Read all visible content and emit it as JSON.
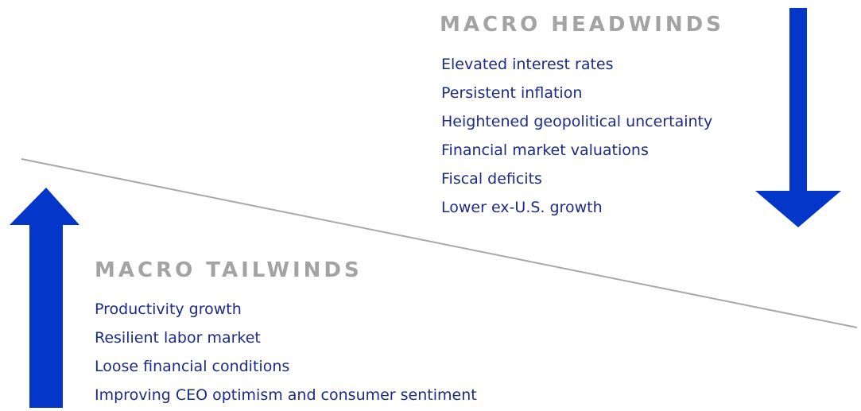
{
  "headwinds": {
    "title": "MACRO HEADWINDS",
    "items": [
      "Elevated interest rates",
      "Persistent inflation",
      "Heightened geopolitical uncertainty",
      "Financial market valuations",
      "Fiscal deficits",
      "Lower ex-U.S. growth"
    ]
  },
  "tailwinds": {
    "title": "MACRO TAILWINDS",
    "items": [
      "Productivity growth",
      "Resilient labor market",
      "Loose financial conditions",
      "Improving CEO optimism and consumer sentiment"
    ]
  }
}
